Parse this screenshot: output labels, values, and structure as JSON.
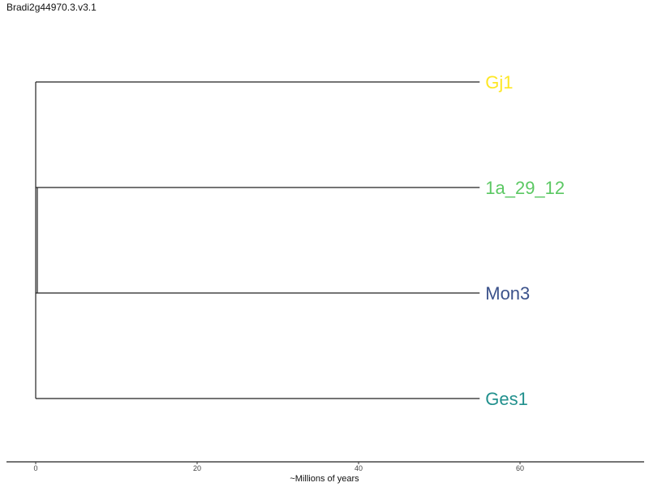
{
  "title": "Bradi2g44970.3.v3.1",
  "x_axis": {
    "label": "~Millions of years",
    "ticks": [
      0,
      20,
      40,
      60
    ],
    "range": [
      0,
      75
    ]
  },
  "tree": {
    "root_age": 0,
    "leaf_age": 55,
    "internal_nodes": [
      {
        "age": 0.0,
        "span_from_leaf": 0,
        "span_to_leaf": 3
      },
      {
        "age": 0.2,
        "span_from_leaf": 1,
        "span_to_leaf": 2
      }
    ],
    "leaves": [
      {
        "name": "Gj1",
        "color": "#FDE725"
      },
      {
        "name": "1a_29_12",
        "color": "#5BC863"
      },
      {
        "name": "Mon3",
        "color": "#3B528B"
      },
      {
        "name": "Ges1",
        "color": "#21908D"
      }
    ]
  }
}
